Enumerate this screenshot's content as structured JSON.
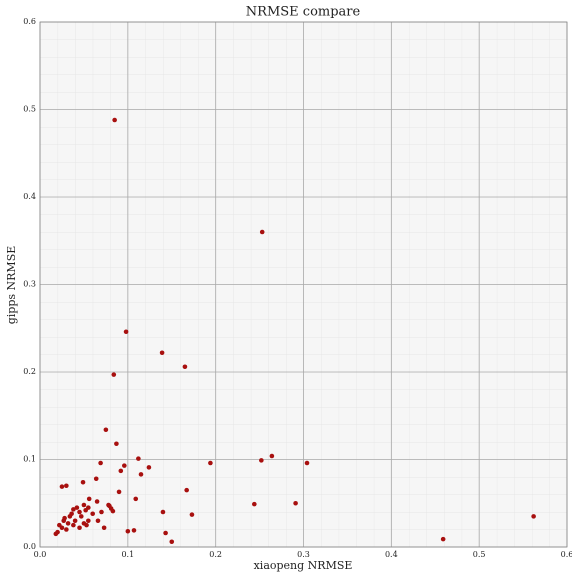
{
  "chart_data": {
    "type": "scatter",
    "title": "NRMSE compare",
    "x_label": "xiaopeng NRMSE",
    "y_label": "gipps NRMSE",
    "color": "#a8100f",
    "grid": true,
    "xlim": [
      0,
      0.6
    ],
    "ylim": [
      0,
      0.6
    ],
    "xticks": [
      {
        "value": 0,
        "label": "0.0"
      },
      0.1,
      0.2,
      0.3,
      0.4,
      0.5,
      0.6
    ],
    "yticks": [
      {
        "value": 0,
        "label": "0.0"
      },
      0.1,
      0.2,
      0.3,
      0.4,
      0.5,
      0.6
    ],
    "series": [
      {
        "name": "points",
        "color": "#a8100f",
        "x": [
          0.085,
          0.253,
          0.098,
          0.139,
          0.165,
          0.084,
          0.075,
          0.087,
          0.112,
          0.124,
          0.096,
          0.092,
          0.115,
          0.069,
          0.194,
          0.264,
          0.252,
          0.304,
          0.167,
          0.09,
          0.109,
          0.244,
          0.291,
          0.173,
          0.14,
          0.562,
          0.459,
          0.143,
          0.15,
          0.1,
          0.107,
          0.025,
          0.03,
          0.049,
          0.064,
          0.079,
          0.081,
          0.083,
          0.018,
          0.02,
          0.022,
          0.025,
          0.027,
          0.03,
          0.032,
          0.034,
          0.036,
          0.038,
          0.04,
          0.042,
          0.045,
          0.047,
          0.05,
          0.052,
          0.053,
          0.055,
          0.056,
          0.06,
          0.065,
          0.066,
          0.07,
          0.073,
          0.078,
          0.028,
          0.038,
          0.045,
          0.05,
          0.055
        ],
        "values": [
          0.488,
          0.36,
          0.246,
          0.222,
          0.206,
          0.197,
          0.134,
          0.118,
          0.101,
          0.091,
          0.093,
          0.087,
          0.083,
          0.096,
          0.096,
          0.104,
          0.099,
          0.096,
          0.065,
          0.063,
          0.055,
          0.049,
          0.05,
          0.037,
          0.04,
          0.035,
          0.009,
          0.016,
          0.006,
          0.018,
          0.019,
          0.069,
          0.07,
          0.074,
          0.078,
          0.047,
          0.044,
          0.041,
          0.015,
          0.017,
          0.025,
          0.022,
          0.03,
          0.02,
          0.027,
          0.035,
          0.038,
          0.025,
          0.03,
          0.045,
          0.04,
          0.035,
          0.048,
          0.042,
          0.025,
          0.03,
          0.055,
          0.038,
          0.052,
          0.03,
          0.04,
          0.022,
          0.048,
          0.033,
          0.043,
          0.022,
          0.027,
          0.045
        ]
      }
    ]
  }
}
